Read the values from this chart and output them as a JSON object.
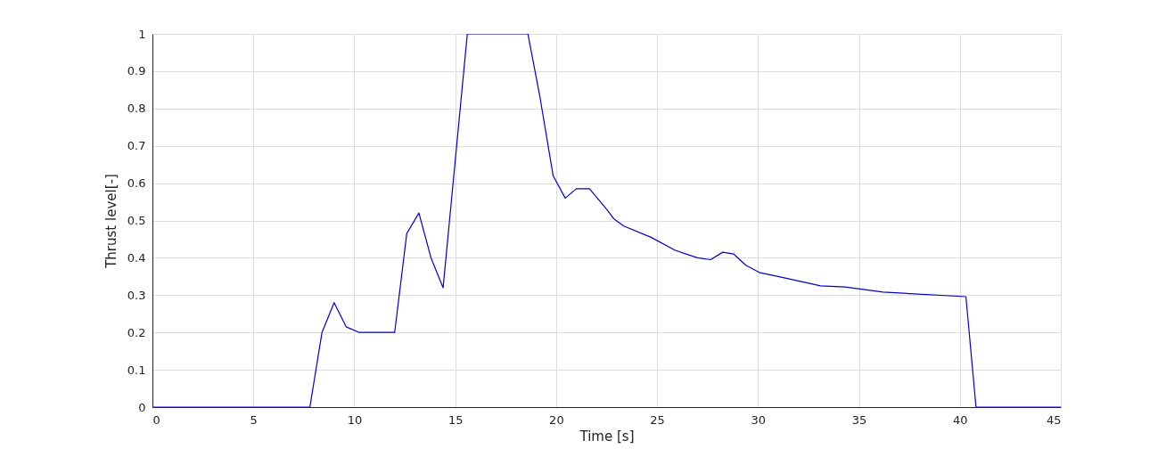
{
  "chart_data": {
    "type": "line",
    "xlabel": "Time [s]",
    "ylabel": "Thrust level[-]",
    "xlim": [
      0,
      45
    ],
    "xticks": [
      0,
      5,
      10,
      15,
      20,
      25,
      30,
      35,
      40,
      45
    ],
    "ylim": [
      0,
      1
    ],
    "yticks": [
      0,
      0.1,
      0.2,
      0.3,
      0.4,
      0.5,
      0.6,
      0.7,
      0.8,
      0.9,
      1
    ],
    "grid": true,
    "marker": "none",
    "line_style": "solid",
    "series": [
      {
        "color": "#0000cc",
        "x": [
          0,
          7.8,
          8.4,
          9.0,
          9.6,
          10.25,
          12.0,
          12.6,
          13.2,
          13.8,
          14.4,
          15.6,
          18.6,
          19.2,
          19.85,
          20.45,
          21.0,
          21.65,
          22.5,
          22.85,
          23.35,
          24.7,
          25.9,
          27.0,
          27.65,
          28.25,
          28.8,
          29.4,
          30.1,
          31.0,
          33.1,
          34.3,
          36.2,
          40.3,
          40.8,
          45
        ],
        "values": [
          0,
          0,
          0.2,
          0.28,
          0.215,
          0.2,
          0.2,
          0.465,
          0.52,
          0.4,
          0.32,
          1.0,
          1.0,
          0.83,
          0.62,
          0.56,
          0.585,
          0.585,
          0.53,
          0.505,
          0.485,
          0.455,
          0.42,
          0.4,
          0.395,
          0.415,
          0.41,
          0.38,
          0.36,
          0.35,
          0.325,
          0.322,
          0.308,
          0.296,
          0,
          0
        ]
      }
    ]
  }
}
